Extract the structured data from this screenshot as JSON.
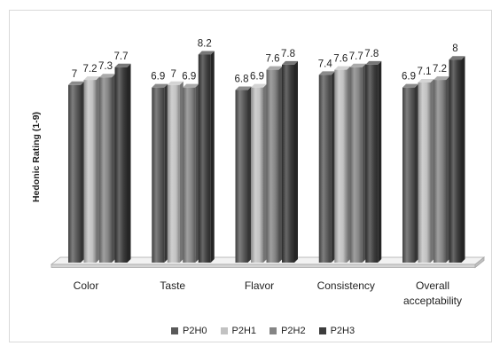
{
  "chart_data": {
    "type": "bar",
    "ylabel": "Hedonic Rating (1-9)",
    "ylim": [
      0,
      9
    ],
    "grid": false,
    "data_labels": true,
    "legend_position": "bottom",
    "categories": [
      "Color",
      "Taste",
      "Flavor",
      "Consistency",
      "Overall acceptability"
    ],
    "series": [
      {
        "name": "P2H0",
        "color": "#595959",
        "values": [
          7,
          6.9,
          6.8,
          7.4,
          6.9
        ]
      },
      {
        "name": "P2H1",
        "color": "#c2c2c2",
        "values": [
          7.2,
          7,
          6.9,
          7.6,
          7.1
        ]
      },
      {
        "name": "P2H2",
        "color": "#858585",
        "values": [
          7.3,
          6.9,
          7.6,
          7.7,
          7.2
        ]
      },
      {
        "name": "P2H3",
        "color": "#3d3d3d",
        "values": [
          7.7,
          8.2,
          7.8,
          7.8,
          8
        ]
      }
    ]
  }
}
